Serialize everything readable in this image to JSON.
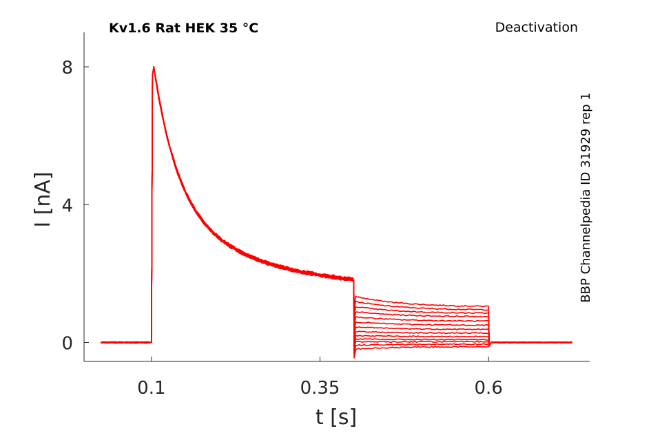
{
  "chart_data": {
    "type": "line",
    "title": "Kv1.6  Rat  HEK  35 °C",
    "subtitle": "Deactivation",
    "side_label": "BBP Channelpedia ID 31929 rep 1",
    "xlabel": "t [s]",
    "ylabel": "I [nA]",
    "xlim": [
      0.0,
      0.75
    ],
    "ylim": [
      -0.55,
      9.0
    ],
    "xticks": [
      0.1,
      0.35,
      0.6
    ],
    "xtick_labels": [
      "0.1",
      "0.35",
      "0.6"
    ],
    "yticks": [
      0,
      4,
      8
    ],
    "ytick_labels": [
      "0",
      "4",
      "8"
    ],
    "grid": false,
    "color": "#ff0000",
    "protocol": {
      "baseline_end": 0.1,
      "peak": 8.0,
      "plateau_end_value": 1.8,
      "step_start": 0.4,
      "step_end": 0.6,
      "trace_end": 0.725
    },
    "series": [
      {
        "step_start_value": 1.35,
        "step_end_value": 1.05
      },
      {
        "step_start_value": 1.2,
        "step_end_value": 0.95
      },
      {
        "step_start_value": 1.05,
        "step_end_value": 0.85
      },
      {
        "step_start_value": 0.9,
        "step_end_value": 0.75
      },
      {
        "step_start_value": 0.75,
        "step_end_value": 0.62
      },
      {
        "step_start_value": 0.6,
        "step_end_value": 0.5
      },
      {
        "step_start_value": 0.45,
        "step_end_value": 0.38
      },
      {
        "step_start_value": 0.32,
        "step_end_value": 0.27
      },
      {
        "step_start_value": 0.2,
        "step_end_value": 0.17
      },
      {
        "step_start_value": 0.1,
        "step_end_value": 0.08
      },
      {
        "step_start_value": 0.02,
        "step_end_value": 0.02
      },
      {
        "step_start_value": -0.08,
        "step_end_value": -0.05
      },
      {
        "step_start_value": -0.2,
        "step_end_value": -0.12
      }
    ]
  }
}
